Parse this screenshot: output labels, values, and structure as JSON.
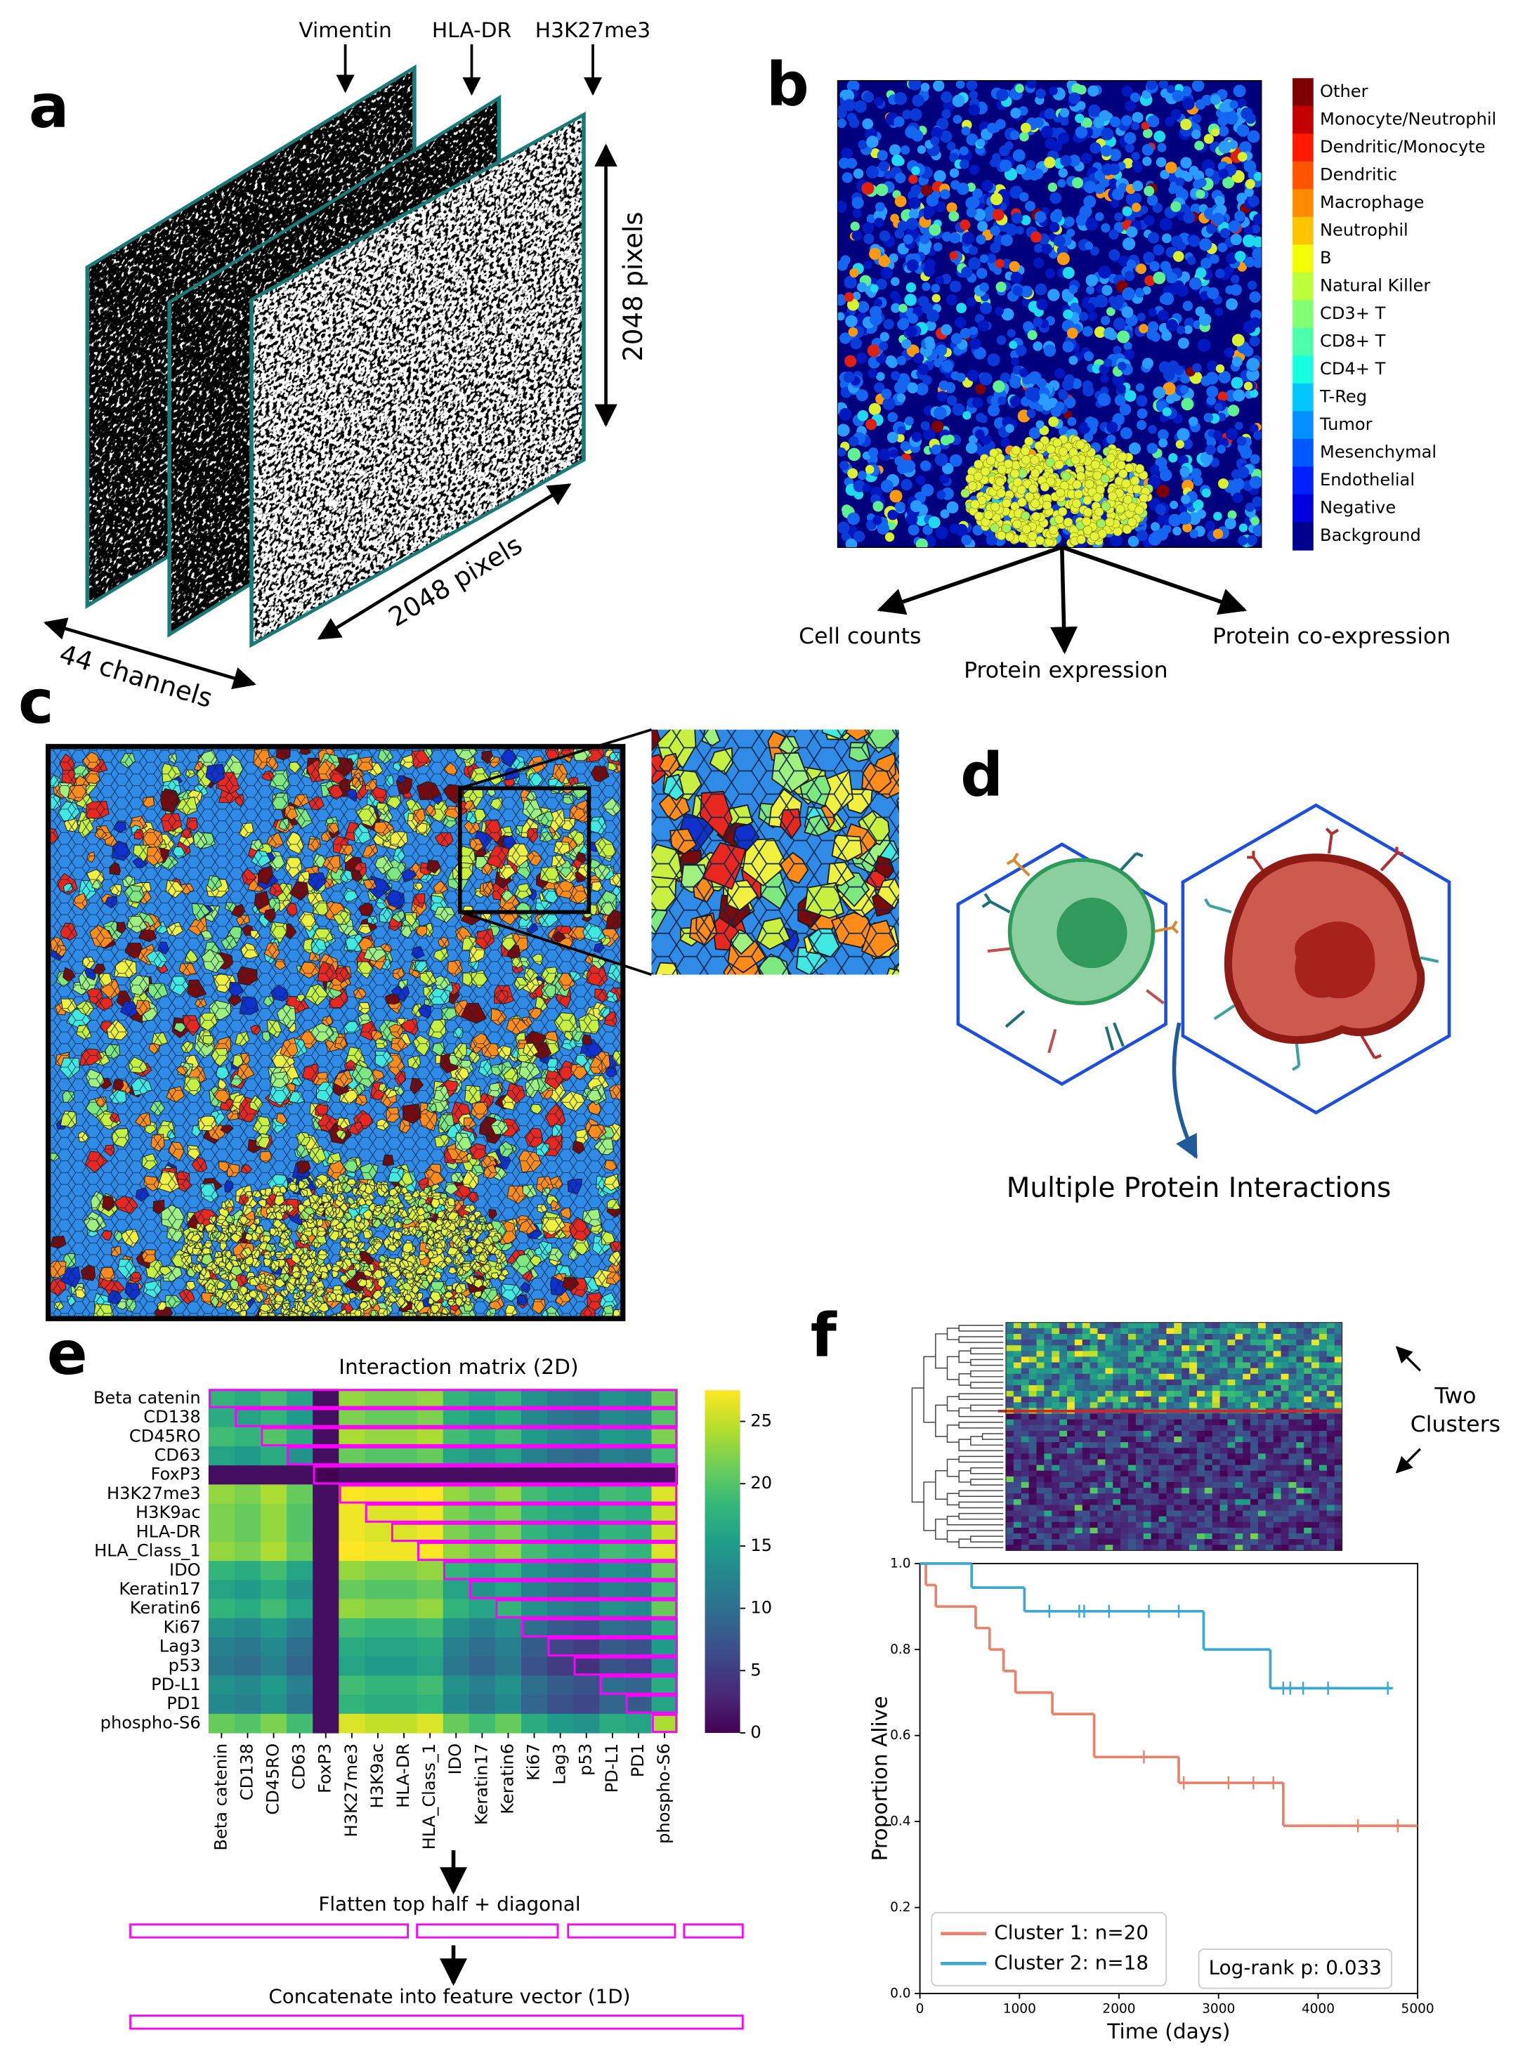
{
  "panels": {
    "a": {
      "label": "a",
      "channels": [
        "Vimentin",
        "HLA-DR",
        "H3K27me3"
      ],
      "height_label": "2048 pixels",
      "width_label": "2048 pixels",
      "depth_label": "44 channels"
    },
    "b": {
      "label": "b",
      "legend": [
        {
          "name": "Other",
          "color": "#7f0000"
        },
        {
          "name": "Monocyte/Neutrophil",
          "color": "#c40000"
        },
        {
          "name": "Dendritic/Monocyte",
          "color": "#ff1a00"
        },
        {
          "name": "Dendritic",
          "color": "#ff5500"
        },
        {
          "name": "Macrophage",
          "color": "#ff8c00"
        },
        {
          "name": "Neutrophil",
          "color": "#ffc400"
        },
        {
          "name": "B",
          "color": "#f1fc06"
        },
        {
          "name": "Natural Killer",
          "color": "#bbff3c"
        },
        {
          "name": "CD3+ T",
          "color": "#83ff73"
        },
        {
          "name": "CD8+ T",
          "color": "#4dffaa"
        },
        {
          "name": "CD4+ T",
          "color": "#16ffe1"
        },
        {
          "name": "T-Reg",
          "color": "#00c8ff"
        },
        {
          "name": "Tumor",
          "color": "#0090ff"
        },
        {
          "name": "Mesenchymal",
          "color": "#0058ff"
        },
        {
          "name": "Endothelial",
          "color": "#0020ff"
        },
        {
          "name": "Negative",
          "color": "#0000de"
        },
        {
          "name": "Background",
          "color": "#00008f"
        }
      ],
      "outputs": [
        "Cell counts",
        "Protein expression",
        "Protein co-expression"
      ]
    },
    "c": {
      "label": "c"
    },
    "d": {
      "label": "d",
      "caption": "Multiple Protein Interactions"
    },
    "e": {
      "label": "e",
      "chart_data": {
        "type": "heatmap",
        "title": "Interaction matrix (2D)",
        "colormap": "viridis",
        "labels": [
          "Beta catenin",
          "CD138",
          "CD45RO",
          "CD63",
          "FoxP3",
          "H3K27me3",
          "H3K9ac",
          "HLA-DR",
          "HLA_Class_1",
          "IDO",
          "Keratin17",
          "Keratin6",
          "Ki67",
          "Lag3",
          "p53",
          "PD-L1",
          "PD1",
          "phospho-S6"
        ],
        "values": [
          [
            18,
            17,
            19,
            16,
            1,
            23,
            22,
            22,
            23,
            18,
            16,
            18,
            14,
            12,
            11,
            14,
            13,
            21
          ],
          [
            17,
            16,
            18,
            15,
            1,
            22,
            21,
            21,
            22,
            17,
            15,
            17,
            13,
            11,
            10,
            13,
            12,
            20
          ],
          [
            19,
            18,
            20,
            17,
            1,
            24,
            23,
            23,
            24,
            19,
            17,
            19,
            15,
            13,
            12,
            15,
            14,
            22
          ],
          [
            16,
            15,
            17,
            14,
            1,
            21,
            20,
            20,
            21,
            16,
            14,
            16,
            12,
            10,
            9,
            12,
            11,
            19
          ],
          [
            1,
            1,
            1,
            1,
            0,
            1,
            1,
            1,
            1,
            1,
            1,
            1,
            1,
            1,
            1,
            1,
            1,
            1
          ],
          [
            23,
            22,
            24,
            21,
            1,
            28,
            27,
            27,
            28,
            23,
            21,
            23,
            19,
            17,
            16,
            19,
            18,
            26
          ],
          [
            22,
            21,
            23,
            20,
            1,
            27,
            26,
            26,
            27,
            22,
            20,
            22,
            18,
            16,
            15,
            18,
            17,
            25
          ],
          [
            22,
            21,
            23,
            20,
            1,
            27,
            26,
            26,
            27,
            22,
            20,
            22,
            18,
            16,
            15,
            18,
            17,
            25
          ],
          [
            23,
            22,
            24,
            21,
            1,
            28,
            27,
            27,
            28,
            23,
            21,
            23,
            19,
            17,
            16,
            19,
            18,
            26
          ],
          [
            18,
            17,
            19,
            16,
            1,
            23,
            22,
            22,
            23,
            18,
            16,
            18,
            14,
            12,
            11,
            14,
            13,
            21
          ],
          [
            16,
            15,
            17,
            14,
            1,
            21,
            20,
            20,
            21,
            16,
            14,
            16,
            12,
            10,
            9,
            12,
            11,
            19
          ],
          [
            18,
            17,
            19,
            16,
            1,
            23,
            22,
            22,
            23,
            18,
            16,
            18,
            14,
            12,
            11,
            14,
            13,
            21
          ],
          [
            14,
            13,
            15,
            12,
            1,
            19,
            18,
            18,
            19,
            14,
            12,
            14,
            10,
            8,
            7,
            10,
            9,
            17
          ],
          [
            12,
            11,
            13,
            10,
            1,
            17,
            16,
            16,
            17,
            12,
            10,
            12,
            8,
            6,
            5,
            8,
            7,
            15
          ],
          [
            11,
            10,
            12,
            9,
            1,
            16,
            15,
            15,
            16,
            11,
            9,
            11,
            7,
            5,
            4,
            7,
            6,
            14
          ],
          [
            14,
            13,
            15,
            12,
            1,
            19,
            18,
            18,
            19,
            14,
            12,
            14,
            10,
            8,
            7,
            10,
            9,
            17
          ],
          [
            13,
            12,
            14,
            11,
            1,
            18,
            17,
            17,
            18,
            13,
            11,
            13,
            9,
            7,
            6,
            9,
            8,
            16
          ],
          [
            21,
            20,
            22,
            19,
            1,
            26,
            25,
            25,
            26,
            21,
            19,
            21,
            17,
            15,
            14,
            17,
            16,
            24
          ]
        ],
        "zlim": [
          0,
          27.5
        ],
        "zticks": [
          0,
          5,
          10,
          15,
          20,
          25
        ]
      },
      "steps": [
        "Flatten top half + diagonal",
        "Concatenate into feature vector (1D)"
      ]
    },
    "f": {
      "label": "f",
      "callout": [
        "Two",
        "Clusters"
      ],
      "chart_data": {
        "type": "kaplan-meier",
        "xlabel": "Time (days)",
        "ylabel": "Proportion Alive",
        "xlim": [
          0,
          5000
        ],
        "ylim": [
          0,
          1
        ],
        "xticks": [
          0,
          1000,
          2000,
          3000,
          4000,
          5000
        ],
        "yticks": [
          {
            "value": 0,
            "label": "0.0"
          },
          0.2,
          0.4,
          0.6,
          0.8,
          {
            "value": 1,
            "label": "1.0"
          }
        ],
        "annotation": "Log-rank p: 0.033",
        "legend": "lower left",
        "series": [
          {
            "name": "Cluster 1: n=20",
            "color": "#e8826a",
            "x": [
              0,
              60,
              160,
              560,
              700,
              840,
              960,
              1330,
              1750,
              2600,
              3650,
              5000
            ],
            "values": [
              1,
              0.95,
              0.9,
              0.85,
              0.8,
              0.75,
              0.7,
              0.65,
              0.55,
              0.49,
              0.39,
              0.39
            ],
            "censor_x": [
              2250,
              2650,
              3100,
              3350,
              3550,
              4400,
              4800
            ],
            "censor_values": [
              0.55,
              0.49,
              0.49,
              0.49,
              0.49,
              0.39,
              0.39
            ]
          },
          {
            "name": "Cluster 2: n=18",
            "color": "#3aa8d0",
            "x": [
              0,
              520,
              1050,
              2850,
              3520,
              4750
            ],
            "values": [
              1,
              0.944,
              0.889,
              0.8,
              0.71,
              0.71
            ],
            "censor_x": [
              1300,
              1600,
              1650,
              1900,
              2300,
              2600,
              3650,
              3720,
              3850,
              4100,
              4700
            ],
            "censor_values": [
              0.889,
              0.889,
              0.889,
              0.889,
              0.889,
              0.889,
              0.71,
              0.71,
              0.71,
              0.71,
              0.71
            ]
          }
        ]
      }
    }
  }
}
